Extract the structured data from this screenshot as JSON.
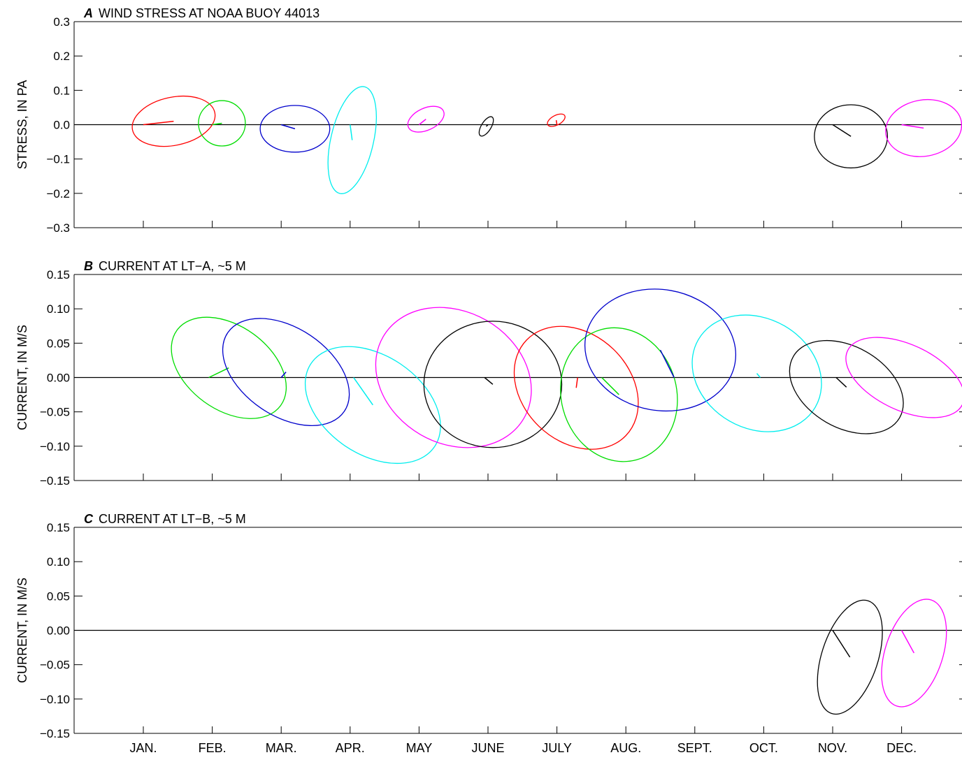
{
  "months": [
    "JAN.",
    "FEB.",
    "MAR.",
    "APR.",
    "MAY",
    "JUNE",
    "JULY",
    "AUG.",
    "SEPT.",
    "OCT.",
    "NOV.",
    "DEC."
  ],
  "chart_data": [
    {
      "type": "other",
      "letter": "A",
      "title": "WIND STRESS AT NOAA BUOY 44013",
      "ylabel": "STRESS, IN PA",
      "ylim": [
        -0.3,
        0.3
      ],
      "yticks": [
        -0.3,
        -0.2,
        -0.1,
        0.0,
        0.1,
        0.2,
        0.3
      ],
      "ytick_labels": [
        "−0.3",
        "−0.2",
        "−0.1",
        "0.0",
        "0.1",
        "0.2",
        "0.3"
      ],
      "units_per_month": 0.2,
      "items": [
        {
          "month": 1,
          "color": "#ff0000",
          "u": 0.088,
          "v": 0.01,
          "a": 0.122,
          "b": 0.07,
          "angle": -12
        },
        {
          "month": 2,
          "color": "#00dd00",
          "u": 0.028,
          "v": 0.004,
          "a": 0.068,
          "b": 0.066,
          "angle": 0
        },
        {
          "month": 3,
          "color": "#0000cc",
          "u": 0.04,
          "v": -0.012,
          "a": 0.101,
          "b": 0.068,
          "angle": 0
        },
        {
          "month": 4,
          "color": "#00eeee",
          "u": 0.006,
          "v": -0.045,
          "a": 0.159,
          "b": 0.062,
          "angle": -77
        },
        {
          "month": 5,
          "color": "#ff00ff",
          "u": 0.02,
          "v": 0.016,
          "a": 0.056,
          "b": 0.032,
          "angle": -25
        },
        {
          "month": 6,
          "color": "#000000",
          "u": -0.005,
          "v": -0.005,
          "a": 0.032,
          "b": 0.014,
          "angle": -58
        },
        {
          "month": 7,
          "color": "#ff0000",
          "u": -0.002,
          "v": 0.013,
          "a": 0.028,
          "b": 0.014,
          "angle": -28
        },
        {
          "month": 11,
          "color": "#000000",
          "u": 0.053,
          "v": -0.034,
          "a": 0.106,
          "b": 0.092,
          "angle": 0
        },
        {
          "month": 12,
          "color": "#ff00ff",
          "u": 0.064,
          "v": -0.01,
          "a": 0.111,
          "b": 0.082,
          "angle": -10
        }
      ]
    },
    {
      "type": "other",
      "letter": "B",
      "title": "CURRENT AT LT−A, ~5 M",
      "ylabel": "CURRENT, IN M/S",
      "ylim": [
        -0.15,
        0.15
      ],
      "yticks": [
        -0.15,
        -0.1,
        -0.05,
        0.0,
        0.05,
        0.1,
        0.15
      ],
      "ytick_labels": [
        "−0.15",
        "−0.10",
        "−0.05",
        "0.00",
        "0.05",
        "0.10",
        "0.15"
      ],
      "units_per_month": 0.1,
      "items": [
        {
          "month": 1.95,
          "color": "#00dd00",
          "u": 0.029,
          "v": 0.014,
          "a": 0.093,
          "b": 0.061,
          "angle": 36
        },
        {
          "month": 3,
          "color": "#0000cc",
          "u": 0.007,
          "v": 0.008,
          "a": 0.102,
          "b": 0.064,
          "angle": 34
        },
        {
          "month": 4.05,
          "color": "#00eeee",
          "u": 0.028,
          "v": -0.04,
          "a": 0.108,
          "b": 0.072,
          "angle": 34
        },
        {
          "month": 5.5,
          "color": "#ff00ff",
          "u": 0.0,
          "v": 0.0,
          "a": 0.118,
          "b": 0.096,
          "angle": 30
        },
        {
          "month": 5.95,
          "color": "#000000",
          "u": 0.012,
          "v": -0.01,
          "a": 0.1,
          "b": 0.092,
          "angle": 0
        },
        {
          "month": 7.3,
          "color": "#ff0000",
          "u": -0.002,
          "v": -0.015,
          "a": 0.1,
          "b": 0.078,
          "angle": 44
        },
        {
          "month": 7.65,
          "color": "#00dd00",
          "u": 0.025,
          "v": -0.025,
          "a": 0.098,
          "b": 0.084,
          "angle": 75
        },
        {
          "month": 8.7,
          "color": "#0000cc",
          "u": -0.02,
          "v": 0.04,
          "a": 0.11,
          "b": 0.088,
          "angle": 10
        },
        {
          "month": 9.95,
          "color": "#00eeee",
          "u": -0.005,
          "v": 0.006,
          "a": 0.098,
          "b": 0.08,
          "angle": 30
        },
        {
          "month": 11.05,
          "color": "#000000",
          "u": 0.015,
          "v": -0.014,
          "a": 0.089,
          "b": 0.059,
          "angle": 30
        },
        {
          "month": 12.05,
          "color": "#ff00ff",
          "u": 0.0,
          "v": 0.0,
          "a": 0.092,
          "b": 0.048,
          "angle": 25
        }
      ]
    },
    {
      "type": "other",
      "letter": "C",
      "title": "CURRENT AT LT−B, ~5 M",
      "ylabel": "CURRENT, IN M/S",
      "ylim": [
        -0.15,
        0.15
      ],
      "yticks": [
        -0.15,
        -0.1,
        -0.05,
        0.0,
        0.05,
        0.1,
        0.15
      ],
      "ytick_labels": [
        "−0.15",
        "−0.10",
        "−0.05",
        "0.00",
        "0.05",
        "0.10",
        "0.15"
      ],
      "units_per_month": 0.1,
      "items": [
        {
          "month": 11,
          "color": "#000000",
          "u": 0.025,
          "v": -0.039,
          "a": 0.086,
          "b": 0.041,
          "angle": -72
        },
        {
          "month": 12,
          "color": "#ff00ff",
          "u": 0.018,
          "v": -0.033,
          "a": 0.081,
          "b": 0.042,
          "angle": -72
        }
      ]
    }
  ]
}
